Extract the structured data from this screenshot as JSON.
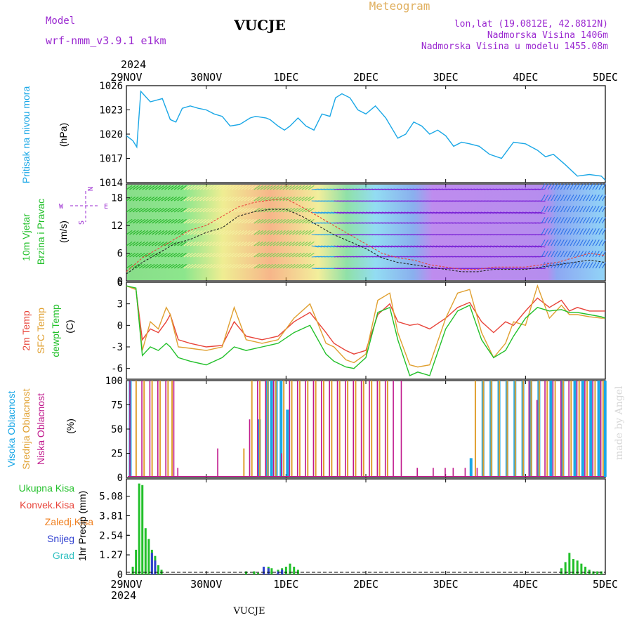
{
  "header": {
    "model_label": "Model",
    "model_name": "wrf-nmm_v3.9.1 e1km",
    "station": "VUCJE",
    "chart_title": "Meteogram",
    "lonlat": "lon,lat (19.0812E, 42.8812N)",
    "altitude": "Nadmorska Visina 1406m",
    "model_altitude": "Nadmorska Visina u modelu 1455.08m",
    "year_top": "2024",
    "year_bottom": "2024",
    "footer_station": "VUCJE",
    "watermark": "made by Angel"
  },
  "colors": {
    "pressure": "#1aa7e6",
    "temp2m": "#e8443a",
    "sfc_temp": "#e0a030",
    "dewpt": "#22c02a",
    "high_cloud": "#1aa7e6",
    "mid_cloud": "#e0a030",
    "low_cloud": "#c0188c",
    "total_precip": "#22c02a",
    "conv_precip": "#e8443a",
    "frozen_precip": "#f08020",
    "snow": "#3040d0",
    "graupel": "#30c0c0",
    "wind_axis": "#9a28d0"
  },
  "x_axis": {
    "ticks": [
      "29NOV",
      "30NOV",
      "1DEC",
      "2DEC",
      "3DEC",
      "4DEC",
      "5DEC"
    ]
  },
  "panels": {
    "pressure": {
      "label": "Pritisak na nivou mora",
      "unit": "(hPa)",
      "yticks": [
        "1026",
        "1023",
        "1020",
        "1017",
        "1014"
      ]
    },
    "wind": {
      "label1": "10m Vjetar",
      "label2": "Brzina i Pravac",
      "unit": "(m/s)",
      "yticks": [
        "18",
        "12",
        "6",
        "0"
      ],
      "compass": {
        "w": "W",
        "n": "N",
        "e": "E",
        "s": "S"
      }
    },
    "temp": {
      "label1": "2m Temp",
      "label2": "SFC Temp",
      "label3": "dewpt Temp",
      "unit": "(C)",
      "yticks": [
        "6",
        "3",
        "0",
        "-3",
        "-6"
      ]
    },
    "cloud": {
      "label1": "Visoka Oblacnost",
      "label2": "Srednja Oblacnost",
      "label3": "Niska Oblacnost",
      "unit": "(%)",
      "yticks": [
        "100",
        "75",
        "50",
        "25",
        "0"
      ]
    },
    "precip": {
      "legend": [
        "Ukupna Kisa",
        "Konvek.Kisa",
        "Zaledj.Kisa",
        "Snijeg",
        "Grad"
      ],
      "unit": "1hr Precip (mm)",
      "yticks": [
        "5.08",
        "3.81",
        "2.54",
        "1.27",
        "0"
      ]
    }
  },
  "chart_data": [
    {
      "type": "line",
      "name": "pressure",
      "ylabel": "(hPa)",
      "ylim": [
        1014,
        1026
      ],
      "x_range_days": [
        0,
        6
      ],
      "x": [
        0,
        0.08,
        0.13,
        0.18,
        0.3,
        0.45,
        0.55,
        0.62,
        0.7,
        0.8,
        0.9,
        1.0,
        1.1,
        1.2,
        1.3,
        1.42,
        1.55,
        1.62,
        1.75,
        1.8,
        1.9,
        1.98,
        2.05,
        2.15,
        2.25,
        2.35,
        2.45,
        2.55,
        2.62,
        2.7,
        2.8,
        2.9,
        3.0,
        3.12,
        3.25,
        3.4,
        3.5,
        3.6,
        3.7,
        3.8,
        3.9,
        4.0,
        4.1,
        4.2,
        4.3,
        4.42,
        4.55,
        4.7,
        4.85,
        5.0,
        5.15,
        5.25,
        5.35,
        5.5,
        5.65,
        5.8,
        5.95,
        6.0
      ],
      "y": [
        1019.8,
        1019.2,
        1018.4,
        1025.3,
        1024.0,
        1024.4,
        1021.8,
        1021.5,
        1023.2,
        1023.5,
        1023.2,
        1023.0,
        1022.5,
        1022.2,
        1021.0,
        1021.2,
        1022.0,
        1022.2,
        1022.0,
        1021.8,
        1021.0,
        1020.5,
        1021.0,
        1022.0,
        1021.0,
        1020.5,
        1022.5,
        1022.2,
        1024.5,
        1025.0,
        1024.5,
        1023.0,
        1022.5,
        1023.5,
        1022.0,
        1019.5,
        1020.0,
        1021.5,
        1021.0,
        1020.0,
        1020.5,
        1019.8,
        1018.5,
        1019.0,
        1018.8,
        1018.5,
        1017.5,
        1017.0,
        1019.0,
        1018.8,
        1018.0,
        1017.2,
        1017.5,
        1016.2,
        1014.8,
        1015.0,
        1014.8,
        1014.3
      ]
    },
    {
      "type": "line",
      "name": "wind",
      "ylabel": "(m/s)",
      "ylim": [
        0,
        21
      ],
      "x_range_days": [
        0,
        6
      ],
      "series": [
        {
          "x": [
            0,
            0.2,
            0.4,
            0.6,
            0.8,
            1.0,
            1.2,
            1.4,
            1.6,
            1.8,
            2.0,
            2.2,
            2.4,
            2.6,
            2.8,
            3.0,
            3.2,
            3.4,
            3.6,
            3.8,
            4.0,
            4.2,
            4.4,
            4.6,
            4.8,
            5.0,
            5.2,
            5.4,
            5.6,
            5.8,
            6.0
          ],
          "y": [
            2,
            5,
            7,
            9,
            11,
            12,
            14,
            16,
            17,
            17.5,
            17.8,
            16,
            14,
            12,
            10,
            8,
            6,
            5,
            4.5,
            3.5,
            3,
            2.5,
            2.5,
            3,
            3,
            3,
            3.5,
            4,
            5,
            6,
            5.5
          ]
        },
        {
          "x": [
            0,
            0.2,
            0.4,
            0.6,
            0.8,
            1.0,
            1.2,
            1.4,
            1.6,
            1.8,
            2.0,
            2.2,
            2.4,
            2.6,
            2.8,
            3.0,
            3.2,
            3.4,
            3.6,
            3.8,
            4.0,
            4.2,
            4.4,
            4.6,
            4.8,
            5.0,
            5.2,
            5.4,
            5.6,
            5.8,
            6.0
          ],
          "y": [
            1.5,
            4,
            6,
            8,
            9,
            10.5,
            11.5,
            14,
            15,
            15.5,
            15.5,
            14,
            12,
            10,
            8.5,
            7,
            5,
            4,
            3.5,
            3,
            2.5,
            2,
            2,
            2.5,
            2.5,
            2.5,
            3,
            3.5,
            4,
            4.5,
            4
          ]
        }
      ]
    },
    {
      "type": "line",
      "name": "temperature",
      "ylabel": "(C)",
      "ylim": [
        -7.5,
        6
      ],
      "x_range_days": [
        0,
        6
      ],
      "series": [
        {
          "name": "2m Temp",
          "x": [
            0,
            0.12,
            0.2,
            0.3,
            0.4,
            0.5,
            0.55,
            0.65,
            0.8,
            1.0,
            1.2,
            1.35,
            1.5,
            1.7,
            1.9,
            2.1,
            2.3,
            2.5,
            2.6,
            2.75,
            2.85,
            3.0,
            3.15,
            3.3,
            3.4,
            3.55,
            3.65,
            3.8,
            4.0,
            4.15,
            4.3,
            4.45,
            4.6,
            4.75,
            4.85,
            5.0,
            5.15,
            5.3,
            5.45,
            5.55,
            5.65,
            5.8,
            5.95,
            6.0
          ],
          "y": [
            5.5,
            5.0,
            -2.0,
            -0.5,
            -1.0,
            0.5,
            1.5,
            -2.0,
            -2.5,
            -3.0,
            -2.8,
            0.5,
            -1.5,
            -2.0,
            -1.5,
            0.5,
            1.8,
            -1.0,
            -2.5,
            -3.5,
            -4.0,
            -3.5,
            1.5,
            3.0,
            0.5,
            0.0,
            0.2,
            -0.5,
            1.0,
            2.5,
            3.2,
            0.5,
            -1.0,
            0.5,
            0.0,
            2.0,
            3.8,
            2.5,
            3.5,
            2.0,
            2.5,
            2.0,
            2.0,
            2.0
          ]
        },
        {
          "name": "SFC Temp",
          "x": [
            0,
            0.12,
            0.2,
            0.3,
            0.4,
            0.5,
            0.55,
            0.65,
            0.8,
            1.0,
            1.2,
            1.35,
            1.5,
            1.7,
            1.9,
            2.1,
            2.3,
            2.5,
            2.6,
            2.75,
            2.85,
            3.0,
            3.15,
            3.3,
            3.4,
            3.55,
            3.65,
            3.8,
            4.0,
            4.15,
            4.3,
            4.45,
            4.6,
            4.75,
            4.85,
            5.0,
            5.15,
            5.3,
            5.45,
            5.55,
            5.65,
            5.8,
            5.95,
            6.0
          ],
          "y": [
            5.5,
            5.0,
            -3.5,
            0.5,
            -0.5,
            2.5,
            1.5,
            -3.0,
            -3.2,
            -3.5,
            -3.0,
            2.5,
            -2.0,
            -2.5,
            -2.0,
            1.0,
            3.0,
            -2.5,
            -3.0,
            -4.8,
            -5.2,
            -4.0,
            3.5,
            4.5,
            -1.0,
            -5.5,
            -5.8,
            -5.5,
            1.0,
            4.5,
            5.0,
            -1.0,
            -4.5,
            -2.5,
            0.5,
            0.0,
            5.5,
            1.0,
            2.8,
            1.5,
            1.5,
            1.2,
            1.0,
            1.0
          ]
        },
        {
          "name": "dewpt Temp",
          "x": [
            0,
            0.12,
            0.2,
            0.3,
            0.4,
            0.5,
            0.55,
            0.65,
            0.8,
            1.0,
            1.2,
            1.35,
            1.5,
            1.7,
            1.9,
            2.1,
            2.3,
            2.5,
            2.6,
            2.75,
            2.85,
            3.0,
            3.15,
            3.3,
            3.4,
            3.55,
            3.65,
            3.8,
            4.0,
            4.15,
            4.3,
            4.45,
            4.6,
            4.75,
            4.85,
            5.0,
            5.15,
            5.3,
            5.45,
            5.55,
            5.65,
            5.8,
            5.95,
            6.0
          ],
          "y": [
            5.5,
            5.2,
            -4.2,
            -3.0,
            -3.5,
            -2.5,
            -3.0,
            -4.5,
            -5.0,
            -5.5,
            -4.5,
            -3.0,
            -3.5,
            -3.0,
            -2.5,
            -1.0,
            0.0,
            -4.0,
            -5.0,
            -5.8,
            -6.0,
            -4.5,
            1.8,
            2.5,
            -2.0,
            -7.0,
            -6.5,
            -7.0,
            -0.5,
            2.0,
            2.8,
            -2.0,
            -4.5,
            -3.5,
            -1.5,
            1.0,
            2.5,
            2.0,
            2.2,
            1.8,
            1.8,
            1.5,
            1.2,
            1.0
          ]
        }
      ]
    },
    {
      "type": "bar",
      "name": "cloud_cover",
      "ylabel": "(%)",
      "ylim": [
        0,
        100
      ],
      "x_range_days": [
        0,
        6
      ],
      "series": [
        {
          "name": "Visoka Oblacnost",
          "x": [
            0.03,
            1.65,
            1.75,
            1.8,
            1.86,
            1.92,
            2.0,
            4.3,
            4.45,
            4.55,
            4.65,
            4.75,
            4.85,
            4.95,
            5.05,
            5.15,
            5.3,
            5.45,
            5.6,
            5.7,
            5.8,
            5.9,
            5.98
          ],
          "y": [
            100,
            60,
            100,
            100,
            100,
            100,
            70,
            20,
            100,
            100,
            100,
            100,
            100,
            100,
            100,
            100,
            100,
            100,
            100,
            100,
            100,
            100,
            100
          ]
        },
        {
          "name": "Srednja Oblacnost",
          "x": [
            0.1,
            0.2,
            0.3,
            0.4,
            0.5,
            0.55,
            1.45,
            1.55,
            1.65,
            1.75,
            1.85,
            1.95,
            2.05,
            2.15,
            2.25,
            2.35,
            2.45,
            2.55,
            2.65,
            2.75,
            2.85,
            2.95,
            3.05,
            3.15,
            3.25,
            4.35,
            4.45,
            4.55,
            4.65,
            4.75,
            4.85,
            4.95,
            5.05,
            5.15,
            5.25,
            5.35,
            5.45,
            5.55,
            5.65,
            5.75,
            5.85,
            5.95
          ],
          "y": [
            100,
            100,
            100,
            100,
            100,
            100,
            30,
            100,
            100,
            100,
            100,
            100,
            100,
            100,
            100,
            100,
            100,
            100,
            100,
            100,
            100,
            100,
            100,
            100,
            100,
            100,
            100,
            100,
            100,
            100,
            100,
            100,
            100,
            100,
            100,
            100,
            100,
            100,
            100,
            100,
            100,
            100
          ]
        },
        {
          "name": "Niska Oblacnost",
          "x": [
            0.0,
            0.15,
            0.25,
            0.35,
            0.45,
            0.55,
            0.6,
            1.1,
            1.5,
            1.6,
            1.7,
            1.8,
            1.9,
            2.0,
            2.1,
            2.2,
            2.3,
            2.4,
            2.5,
            2.6,
            2.7,
            2.8,
            2.9,
            3.0,
            3.1,
            3.2,
            3.3,
            3.4,
            3.6,
            3.8,
            3.95,
            4.05,
            4.2,
            4.35,
            5.0,
            5.1,
            5.2,
            5.3,
            5.4,
            5.5,
            5.6,
            5.7,
            5.8,
            5.9
          ],
          "y": [
            100,
            100,
            100,
            100,
            100,
            100,
            10,
            30,
            60,
            100,
            100,
            100,
            25,
            100,
            100,
            100,
            100,
            100,
            100,
            100,
            100,
            100,
            100,
            100,
            100,
            100,
            100,
            100,
            10,
            10,
            10,
            10,
            10,
            10,
            100,
            80,
            100,
            100,
            100,
            100,
            100,
            100,
            100,
            100
          ]
        }
      ]
    },
    {
      "type": "bar",
      "name": "precipitation",
      "ylabel": "1hr Precip (mm)",
      "ylim": [
        0,
        6.2
      ],
      "x_range_days": [
        0,
        6
      ],
      "series": [
        {
          "name": "Ukupna Kisa",
          "x": [
            0.08,
            0.12,
            0.16,
            0.2,
            0.24,
            0.28,
            0.32,
            0.36,
            0.4,
            0.44,
            1.5,
            1.6,
            1.65,
            1.72,
            1.78,
            1.82,
            1.9,
            1.95,
            2.0,
            2.05,
            2.1,
            2.15,
            5.45,
            5.5,
            5.55,
            5.6,
            5.65,
            5.7,
            5.75,
            5.8,
            5.85,
            5.9,
            5.95
          ],
          "y": [
            0.5,
            1.6,
            5.9,
            5.8,
            3.0,
            2.3,
            1.6,
            1.2,
            0.6,
            0.3,
            0.2,
            0.2,
            0.1,
            0.4,
            0.5,
            0.4,
            0.3,
            0.4,
            0.5,
            0.7,
            0.5,
            0.3,
            0.4,
            0.8,
            1.4,
            1.0,
            0.9,
            0.7,
            0.5,
            0.3,
            0.2,
            0.2,
            0.2
          ]
        },
        {
          "name": "Snijeg",
          "x": [
            0.32,
            0.36,
            1.72,
            1.78,
            1.9,
            1.95
          ],
          "y": [
            1.4,
            0.9,
            0.5,
            0.4,
            0.2,
            0.3
          ]
        }
      ]
    }
  ]
}
